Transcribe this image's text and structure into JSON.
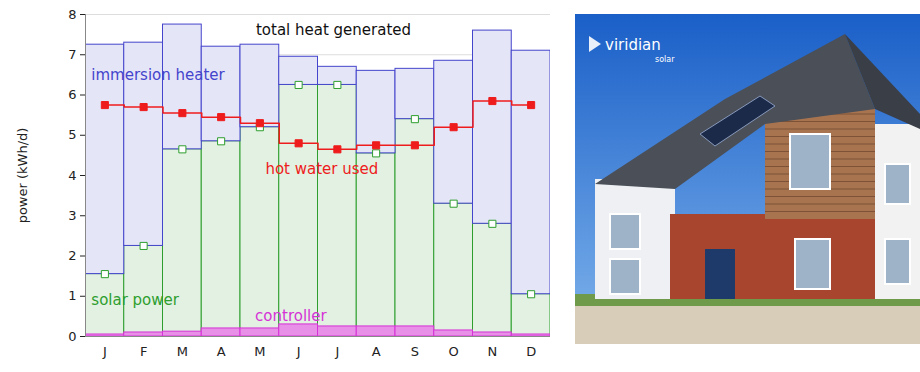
{
  "chart_data": {
    "type": "bar",
    "stacked": true,
    "grid": true,
    "y_label": "power (kWh/d)",
    "annotations": [
      "total heat generated"
    ],
    "categories": [
      "J",
      "F",
      "M",
      "A",
      "M",
      "J",
      "J",
      "A",
      "S",
      "O",
      "N",
      "D"
    ],
    "ylim": [
      0,
      8
    ],
    "yticks": [
      0,
      1,
      2,
      3,
      4,
      5,
      6,
      7,
      8
    ],
    "series": [
      {
        "name": "solar power",
        "type": "bar",
        "color": "#2e9e2e",
        "marker": "open_square",
        "values": [
          1.55,
          2.25,
          4.65,
          4.85,
          5.2,
          6.25,
          6.25,
          4.55,
          5.4,
          3.3,
          2.8,
          1.05
        ]
      },
      {
        "name": "immersion heater",
        "type": "bar",
        "color": "#4444cc",
        "values": [
          5.7,
          5.05,
          3.1,
          2.35,
          2.05,
          0.7,
          0.45,
          2.05,
          1.25,
          3.55,
          4.8,
          6.05
        ]
      },
      {
        "name": "controller",
        "type": "area",
        "color": "#d633d6",
        "values": [
          0.05,
          0.1,
          0.12,
          0.2,
          0.2,
          0.3,
          0.25,
          0.25,
          0.25,
          0.15,
          0.1,
          0.05
        ]
      },
      {
        "name": "hot water used",
        "type": "line",
        "color": "#ee1c1c",
        "marker": "square",
        "values": [
          5.75,
          5.7,
          5.55,
          5.45,
          5.3,
          4.8,
          4.65,
          4.75,
          4.75,
          5.2,
          5.85,
          5.75
        ]
      }
    ]
  },
  "image": {
    "logo": "viridian",
    "logo_sub": "solar"
  }
}
